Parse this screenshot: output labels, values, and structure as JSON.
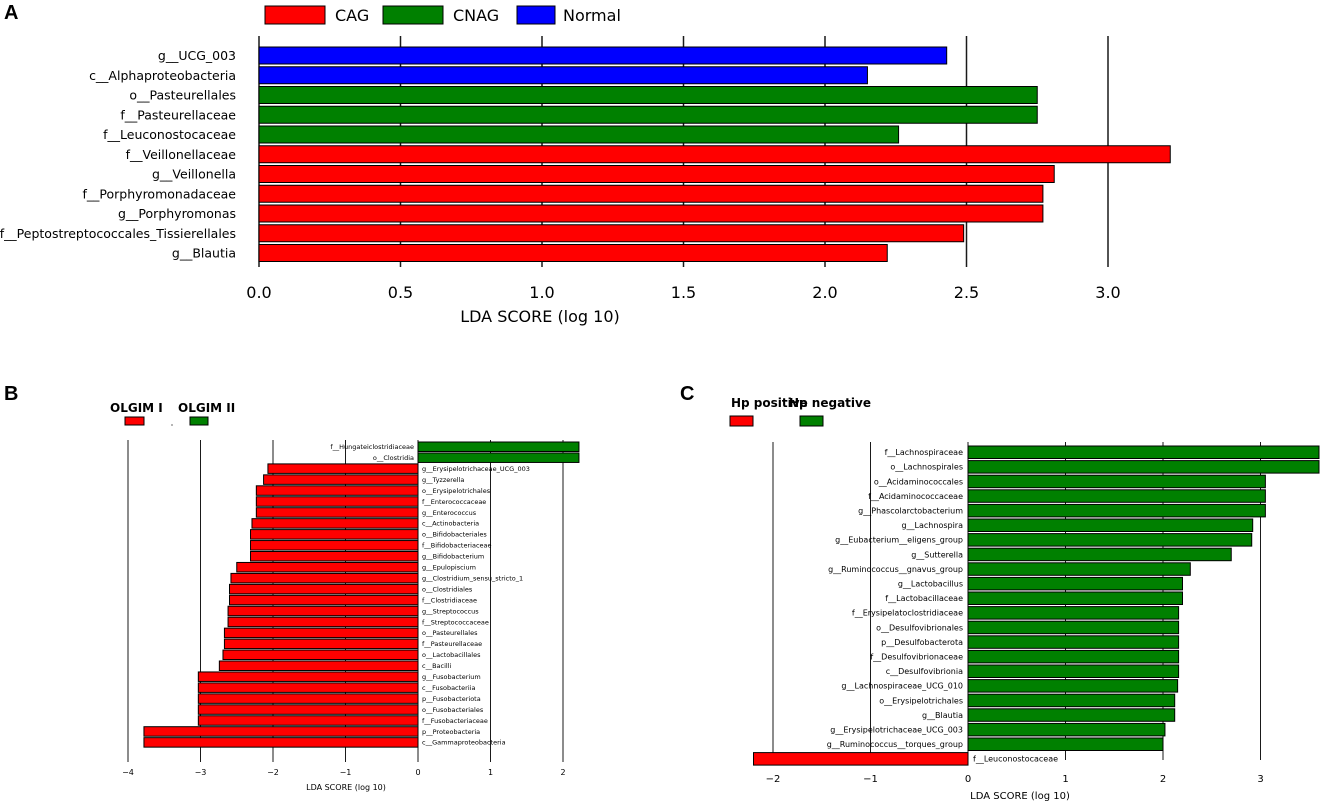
{
  "panel_letters": {
    "a": "A",
    "b": "B",
    "c": "C"
  },
  "chart_data": [
    {
      "panel": "A",
      "type": "bar",
      "orientation": "horizontal",
      "xlabel": "LDA SCORE (log 10)",
      "xlim": [
        0,
        3.3
      ],
      "xticks": [
        "0.0",
        "0.5",
        "1.0",
        "1.5",
        "2.0",
        "2.5",
        "3.0"
      ],
      "xtick_values": [
        0,
        0.5,
        1.0,
        1.5,
        2.0,
        2.5,
        3.0
      ],
      "legend": [
        {
          "name": "CAG",
          "color": "#ff0000"
        },
        {
          "name": "CNAG",
          "color": "#008000"
        },
        {
          "name": "Normal",
          "color": "#0000ff"
        }
      ],
      "bars": [
        {
          "label": "g__UCG_003",
          "value": 2.43,
          "group": "Normal"
        },
        {
          "label": "c__Alphaproteobacteria",
          "value": 2.15,
          "group": "Normal"
        },
        {
          "label": "o__Pasteurellales",
          "value": 2.75,
          "group": "CNAG"
        },
        {
          "label": "f__Pasteurellaceae",
          "value": 2.75,
          "group": "CNAG"
        },
        {
          "label": "f__Leuconostocaceae",
          "value": 2.26,
          "group": "CNAG"
        },
        {
          "label": "f__Veillonellaceae",
          "value": 3.22,
          "group": "CAG"
        },
        {
          "label": "g__Veillonella",
          "value": 2.81,
          "group": "CAG"
        },
        {
          "label": "f__Porphyromonadaceae",
          "value": 2.77,
          "group": "CAG"
        },
        {
          "label": "g__Porphyromonas",
          "value": 2.77,
          "group": "CAG"
        },
        {
          "label": "f__Peptostreptococcales_Tissierellales",
          "value": 2.49,
          "group": "CAG"
        },
        {
          "label": "g__Blautia",
          "value": 2.22,
          "group": "CAG"
        }
      ]
    },
    {
      "panel": "B",
      "type": "bar",
      "orientation": "horizontal",
      "xlabel": "LDA SCORE (log 10)",
      "xlim": [
        -4.2,
        2.4
      ],
      "xticks": [
        "−4",
        "−3",
        "−2",
        "−1",
        "0",
        "1",
        "2"
      ],
      "xtick_values": [
        -4,
        -3,
        -2,
        -1,
        0,
        1,
        2
      ],
      "legend": [
        {
          "name": "OLGIM I",
          "color": "#ff0000"
        },
        {
          "name": "OLGIM II",
          "color": "#008000"
        }
      ],
      "bars": [
        {
          "label": "f__Hungateiclostridiaceae",
          "value": 2.22,
          "group": "OLGIM II"
        },
        {
          "label": "o__Clostridia",
          "value": 2.22,
          "group": "OLGIM II"
        },
        {
          "label": "g__Erysipelotrichaceae_UCG_003",
          "value": -2.07,
          "group": "OLGIM I"
        },
        {
          "label": "g__Tyzzerella",
          "value": -2.13,
          "group": "OLGIM I"
        },
        {
          "label": "o__Erysipelotrichales",
          "value": -2.23,
          "group": "OLGIM I"
        },
        {
          "label": "f__Enterococcaceae",
          "value": -2.23,
          "group": "OLGIM I"
        },
        {
          "label": "g__Enterococcus",
          "value": -2.23,
          "group": "OLGIM I"
        },
        {
          "label": "c__Actinobacteria",
          "value": -2.29,
          "group": "OLGIM I"
        },
        {
          "label": "o__Bifidobacteriales",
          "value": -2.31,
          "group": "OLGIM I"
        },
        {
          "label": "f__Bifidobacteriaceae",
          "value": -2.31,
          "group": "OLGIM I"
        },
        {
          "label": "g__Bifidobacterium",
          "value": -2.31,
          "group": "OLGIM I"
        },
        {
          "label": "g__Epulopiscium",
          "value": -2.5,
          "group": "OLGIM I"
        },
        {
          "label": "g__Clostridium_sensu_stricto_1",
          "value": -2.58,
          "group": "OLGIM I"
        },
        {
          "label": "o__Clostridiales",
          "value": -2.6,
          "group": "OLGIM I"
        },
        {
          "label": "f__Clostridiaceae",
          "value": -2.6,
          "group": "OLGIM I"
        },
        {
          "label": "g__Streptococcus",
          "value": -2.62,
          "group": "OLGIM I"
        },
        {
          "label": "f__Streptococcaceae",
          "value": -2.62,
          "group": "OLGIM I"
        },
        {
          "label": "o__Pasteurellales",
          "value": -2.67,
          "group": "OLGIM I"
        },
        {
          "label": "f__Pasteurellaceae",
          "value": -2.67,
          "group": "OLGIM I"
        },
        {
          "label": "o__Lactobacillales",
          "value": -2.69,
          "group": "OLGIM I"
        },
        {
          "label": "c__Bacilli",
          "value": -2.74,
          "group": "OLGIM I"
        },
        {
          "label": "g__Fusobacterium",
          "value": -3.03,
          "group": "OLGIM I"
        },
        {
          "label": "c__Fusobacteriia",
          "value": -3.03,
          "group": "OLGIM I"
        },
        {
          "label": "p__Fusobacteriota",
          "value": -3.03,
          "group": "OLGIM I"
        },
        {
          "label": "o__Fusobacteriales",
          "value": -3.03,
          "group": "OLGIM I"
        },
        {
          "label": "f__Fusobacteriaceae",
          "value": -3.03,
          "group": "OLGIM I"
        },
        {
          "label": "p__Proteobacteria",
          "value": -3.78,
          "group": "OLGIM I"
        },
        {
          "label": "c__Gammaproteobacteria",
          "value": -3.78,
          "group": "OLGIM I"
        }
      ]
    },
    {
      "panel": "C",
      "type": "bar",
      "orientation": "horizontal",
      "xlabel": "LDA SCORE (log 10)",
      "xlim": [
        -2.3,
        3.6
      ],
      "xticks": [
        "−2",
        "−1",
        "0",
        "1",
        "2",
        "3"
      ],
      "xtick_values": [
        -2,
        -1,
        0,
        1,
        2,
        3
      ],
      "legend": [
        {
          "name": "Hp positive",
          "color": "#ff0000"
        },
        {
          "name": "Hp negative",
          "color": "#008000"
        }
      ],
      "bars": [
        {
          "label": "f__Lachnospiraceae",
          "value": 3.6,
          "group": "Hp negative"
        },
        {
          "label": "o__Lachnospirales",
          "value": 3.6,
          "group": "Hp negative"
        },
        {
          "label": "o__Acidaminococcales",
          "value": 3.05,
          "group": "Hp negative"
        },
        {
          "label": "f__Acidaminococcaceae",
          "value": 3.05,
          "group": "Hp negative"
        },
        {
          "label": "g__Phascolarctobacterium",
          "value": 3.05,
          "group": "Hp negative"
        },
        {
          "label": "g__Lachnospira",
          "value": 2.92,
          "group": "Hp negative"
        },
        {
          "label": "g__Eubacterium__eligens_group",
          "value": 2.91,
          "group": "Hp negative"
        },
        {
          "label": "g__Sutterella",
          "value": 2.7,
          "group": "Hp negative"
        },
        {
          "label": "g__Ruminococcus__gnavus_group",
          "value": 2.28,
          "group": "Hp negative"
        },
        {
          "label": "g__Lactobacillus",
          "value": 2.2,
          "group": "Hp negative"
        },
        {
          "label": "f__Lactobacillaceae",
          "value": 2.2,
          "group": "Hp negative"
        },
        {
          "label": "f__Erysipelatoclostridiaceae",
          "value": 2.16,
          "group": "Hp negative"
        },
        {
          "label": "o__Desulfovibrionales",
          "value": 2.16,
          "group": "Hp negative"
        },
        {
          "label": "p__Desulfobacterota",
          "value": 2.16,
          "group": "Hp negative"
        },
        {
          "label": "f__Desulfovibrionaceae",
          "value": 2.16,
          "group": "Hp negative"
        },
        {
          "label": "c__Desulfovibrionia",
          "value": 2.16,
          "group": "Hp negative"
        },
        {
          "label": "g__Lachnospiraceae_UCG_010",
          "value": 2.15,
          "group": "Hp negative"
        },
        {
          "label": "o__Erysipelotrichales",
          "value": 2.12,
          "group": "Hp negative"
        },
        {
          "label": "g__Blautia",
          "value": 2.12,
          "group": "Hp negative"
        },
        {
          "label": "g__Erysipelotrichaceae_UCG_003",
          "value": 2.02,
          "group": "Hp negative"
        },
        {
          "label": "g__Ruminococcus__torques_group",
          "value": 2.0,
          "group": "Hp negative"
        },
        {
          "label": "f__Leuconostocaceae",
          "value": -2.2,
          "group": "Hp positive"
        }
      ]
    }
  ]
}
